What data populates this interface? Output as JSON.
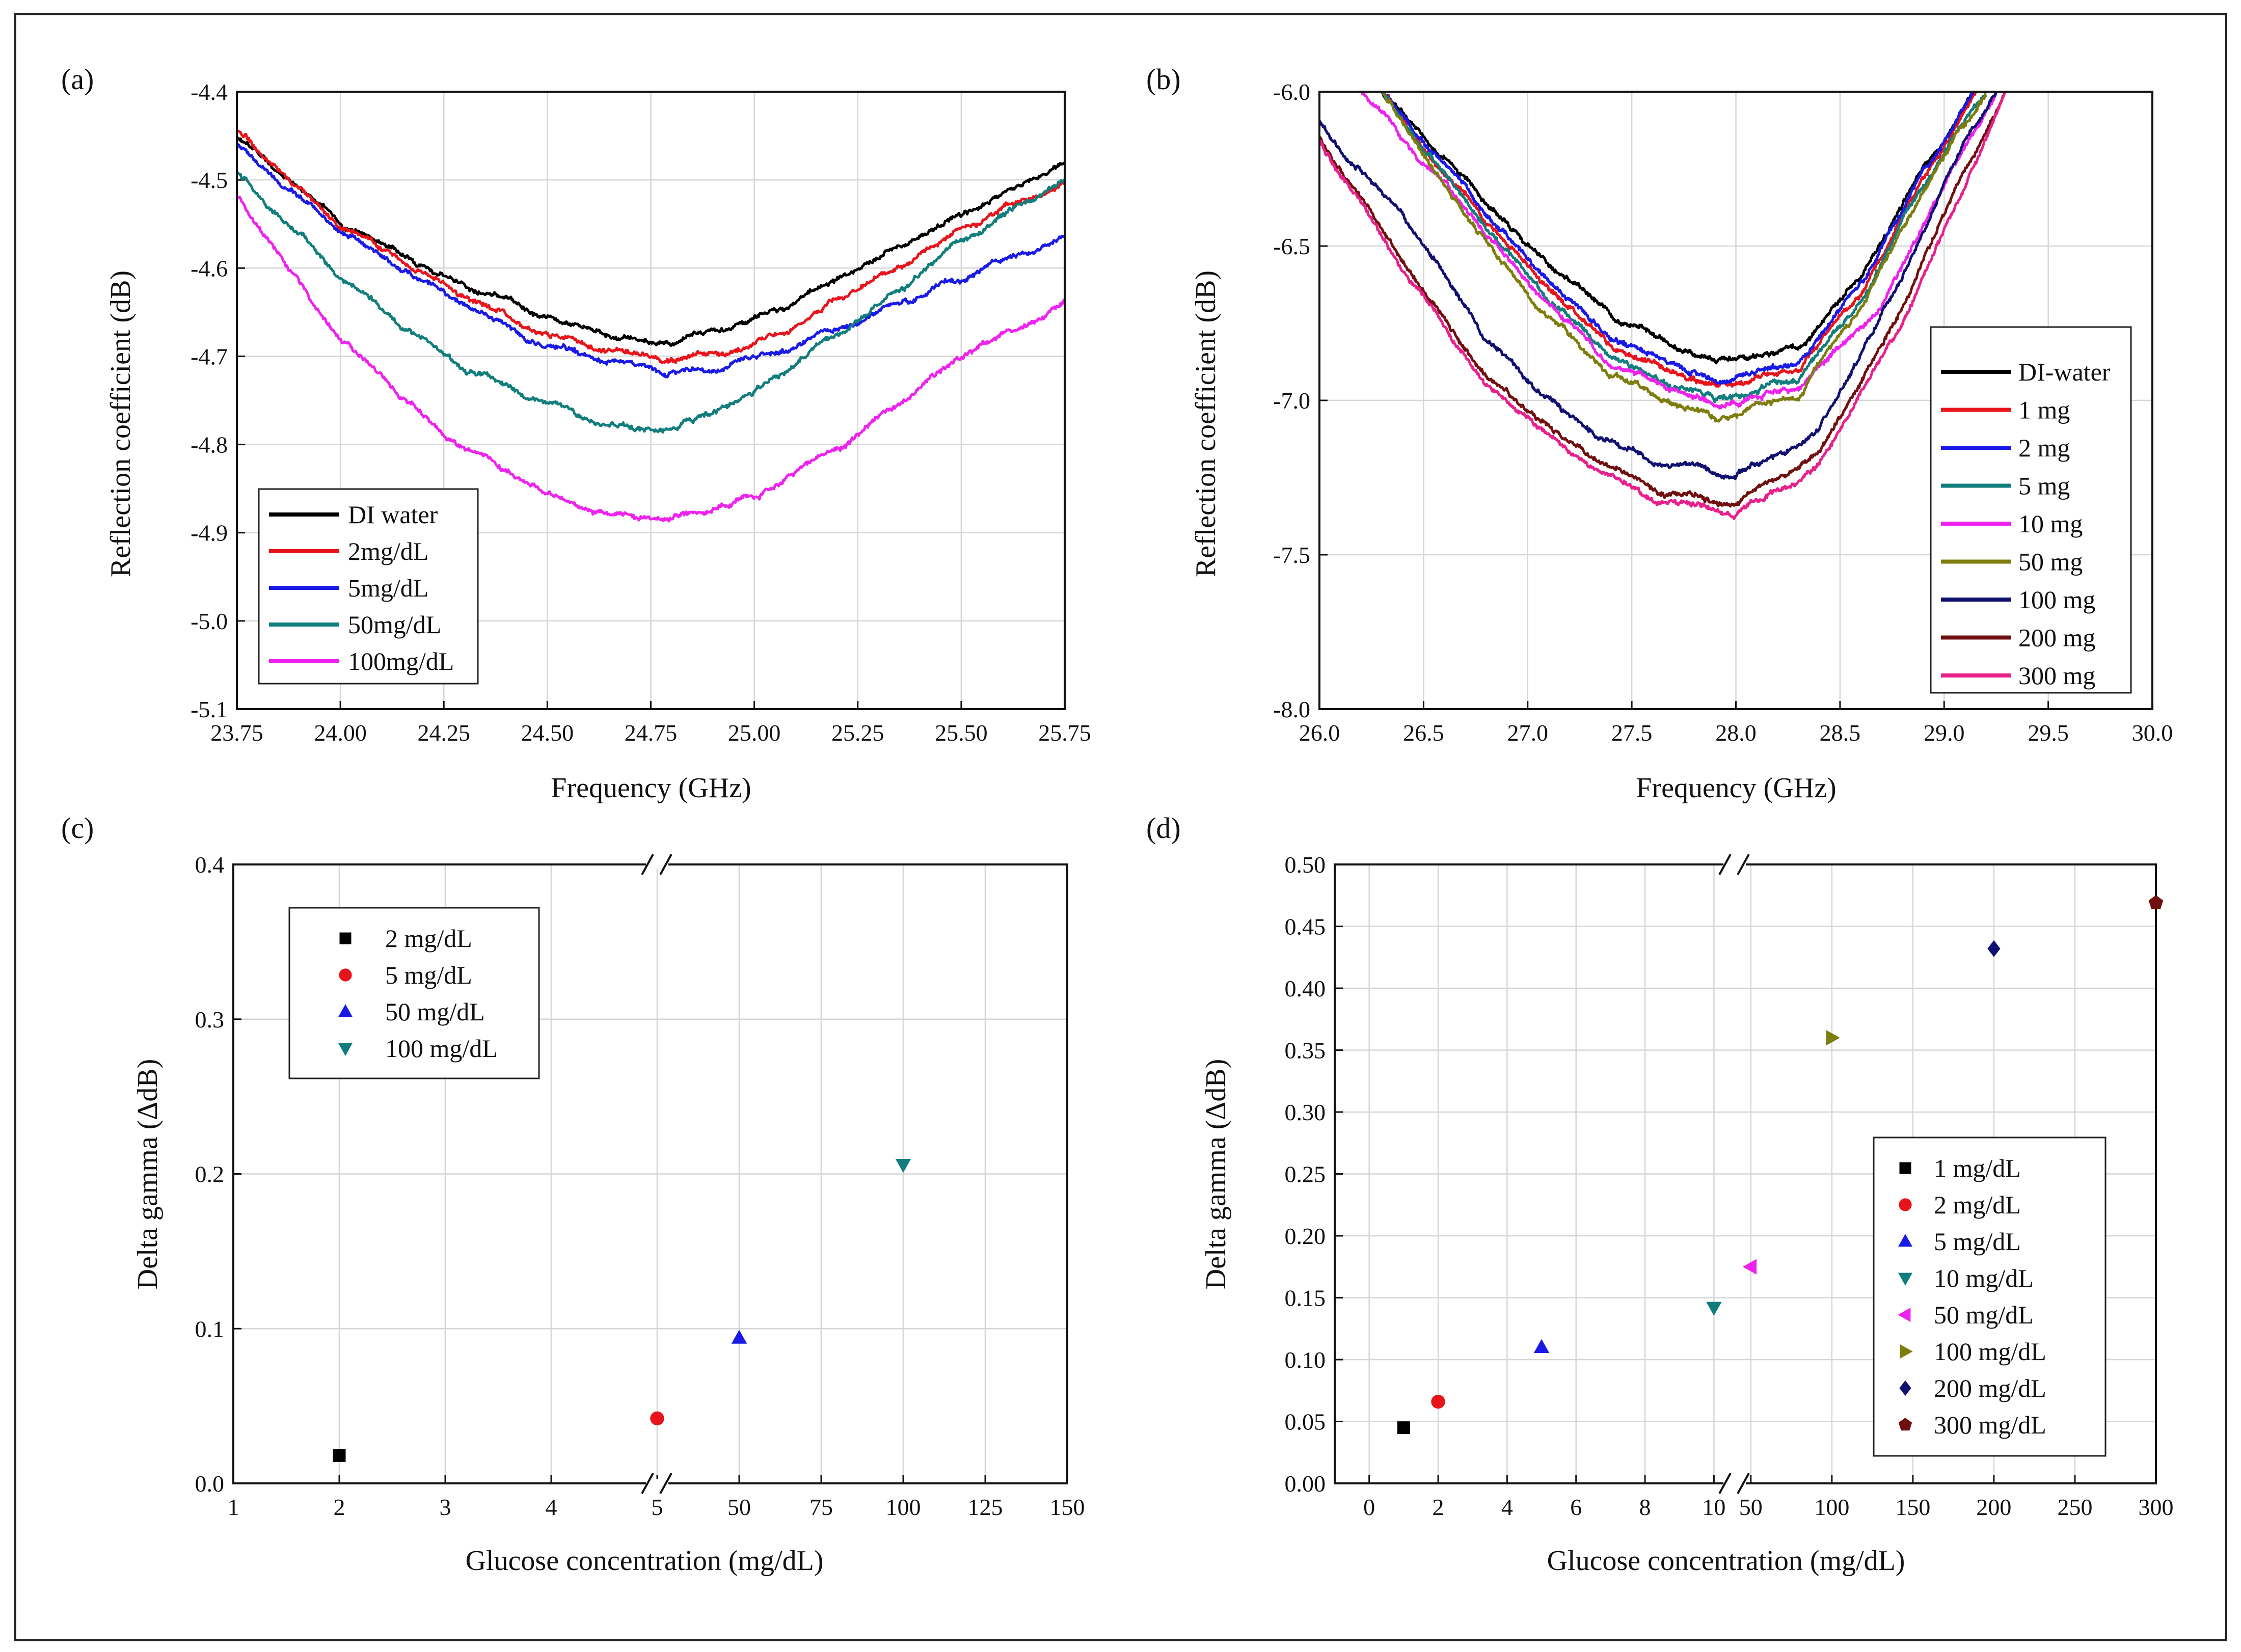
{
  "figure_title": "",
  "chart_data": [
    {
      "id": "a",
      "type": "line",
      "panel_label": "(a)",
      "title": "",
      "xlabel": "Frequency (GHz)",
      "ylabel": "Reflection coefficient (dB)",
      "xlim": [
        23.75,
        25.75
      ],
      "ylim": [
        -5.1,
        -4.4
      ],
      "x_ticks": [
        23.75,
        24.0,
        24.25,
        24.5,
        24.75,
        25.0,
        25.25,
        25.5,
        25.75
      ],
      "x_tick_labels": [
        "23.75",
        "24.00",
        "24.25",
        "24.50",
        "24.75",
        "25.00",
        "25.25",
        "25.50",
        "25.75"
      ],
      "y_ticks": [
        -5.1,
        -5.0,
        -4.9,
        -4.8,
        -4.7,
        -4.6,
        -4.5,
        -4.4
      ],
      "y_tick_labels": [
        "-5.1",
        "-5.0",
        "-4.9",
        "-4.8",
        "-4.7",
        "-4.6",
        "-4.5",
        "-4.4"
      ],
      "grid": true,
      "legend_position": "bottom-left",
      "series": [
        {
          "name": "DI water",
          "color": "#000000",
          "x": [
            23.75,
            24.0,
            24.25,
            24.5,
            24.65,
            24.8,
            25.0,
            25.25,
            25.5,
            25.75
          ],
          "values": [
            -4.45,
            -4.55,
            -4.61,
            -4.655,
            -4.675,
            -4.685,
            -4.66,
            -4.6,
            -4.54,
            -4.48
          ]
        },
        {
          "name": "2mg/dL",
          "color": "#e8141c",
          "x": [
            23.75,
            24.0,
            24.25,
            24.5,
            24.65,
            24.8,
            25.0,
            25.25,
            25.5,
            25.75
          ],
          "values": [
            -4.445,
            -4.55,
            -4.62,
            -4.675,
            -4.69,
            -4.705,
            -4.69,
            -4.625,
            -4.555,
            -4.5
          ]
        },
        {
          "name": "5mg/dL",
          "color": "#1a1ae6",
          "x": [
            23.75,
            24.0,
            24.25,
            24.5,
            24.65,
            24.8,
            25.0,
            25.25,
            25.5,
            25.75
          ],
          "values": [
            -4.46,
            -4.56,
            -4.63,
            -4.69,
            -4.705,
            -4.72,
            -4.705,
            -4.66,
            -4.61,
            -4.565
          ]
        },
        {
          "name": "50mg/dL",
          "color": "#127d7d",
          "x": [
            23.75,
            24.0,
            24.25,
            24.5,
            24.65,
            24.8,
            25.0,
            25.25,
            25.5,
            25.75
          ],
          "values": [
            -4.49,
            -4.61,
            -4.7,
            -4.755,
            -4.775,
            -4.785,
            -4.74,
            -4.66,
            -4.57,
            -4.5
          ]
        },
        {
          "name": "100mg/dL",
          "color": "#ee22ee",
          "x": [
            23.75,
            24.0,
            24.25,
            24.5,
            24.65,
            24.8,
            25.0,
            25.25,
            25.5,
            25.75
          ],
          "values": [
            -4.52,
            -4.68,
            -4.79,
            -4.855,
            -4.88,
            -4.885,
            -4.86,
            -4.79,
            -4.7,
            -4.64
          ]
        }
      ]
    },
    {
      "id": "b",
      "type": "line",
      "panel_label": "(b)",
      "title": "",
      "xlabel": "Frequency (GHz)",
      "ylabel": "Reflection coefficient (dB)",
      "xlim": [
        26.0,
        30.0
      ],
      "ylim": [
        -8.0,
        -6.0
      ],
      "x_ticks": [
        26.0,
        26.5,
        27.0,
        27.5,
        28.0,
        28.5,
        29.0,
        29.5,
        30.0
      ],
      "x_tick_labels": [
        "26.0",
        "26.5",
        "27.0",
        "27.5",
        "28.0",
        "28.5",
        "29.0",
        "29.5",
        "30.0"
      ],
      "y_ticks": [
        -8.0,
        -7.5,
        -7.0,
        -6.5,
        -6.0
      ],
      "y_tick_labels": [
        "-8.0",
        "-7.5",
        "-7.0",
        "-6.5",
        "-6.0"
      ],
      "grid": true,
      "legend_position": "bottom-right",
      "series": [
        {
          "name": "DI-water",
          "color": "#000000",
          "x": [
            26.3,
            26.6,
            27.0,
            27.4,
            27.9,
            28.3,
            28.6,
            28.9,
            29.15
          ],
          "values": [
            -6.0,
            -6.22,
            -6.5,
            -6.72,
            -6.88,
            -6.83,
            -6.6,
            -6.25,
            -6.0
          ]
        },
        {
          "name": "1 mg",
          "color": "#e8141c",
          "x": [
            26.3,
            26.6,
            27.0,
            27.4,
            27.9,
            28.3,
            28.6,
            28.9,
            29.15
          ],
          "values": [
            -6.0,
            -6.26,
            -6.57,
            -6.82,
            -6.96,
            -6.9,
            -6.65,
            -6.28,
            -6.0
          ]
        },
        {
          "name": "2 mg",
          "color": "#1a1ae6",
          "x": [
            26.3,
            26.6,
            27.0,
            27.4,
            27.9,
            28.3,
            28.6,
            28.9,
            29.15
          ],
          "values": [
            -6.0,
            -6.24,
            -6.55,
            -6.8,
            -6.94,
            -6.88,
            -6.62,
            -6.26,
            -6.0
          ]
        },
        {
          "name": "5 mg",
          "color": "#127d7d",
          "x": [
            26.3,
            26.6,
            27.0,
            27.4,
            27.9,
            28.3,
            28.6,
            28.9,
            29.2
          ],
          "values": [
            -6.0,
            -6.27,
            -6.6,
            -6.86,
            -7.0,
            -6.93,
            -6.68,
            -6.3,
            -6.0
          ]
        },
        {
          "name": "10 mg",
          "color": "#ee22ee",
          "x": [
            26.2,
            26.6,
            27.0,
            27.4,
            27.9,
            28.3,
            28.7,
            29.0,
            29.25
          ],
          "values": [
            -6.0,
            -6.3,
            -6.62,
            -6.88,
            -7.02,
            -6.96,
            -6.7,
            -6.3,
            -6.0
          ]
        },
        {
          "name": "50 mg",
          "color": "#7d7d0e",
          "x": [
            26.3,
            26.6,
            27.0,
            27.4,
            27.9,
            28.3,
            28.6,
            28.9,
            29.2
          ],
          "values": [
            -6.0,
            -6.3,
            -6.66,
            -6.92,
            -7.06,
            -6.98,
            -6.7,
            -6.32,
            -6.0
          ]
        },
        {
          "name": "100 mg",
          "color": "#101070",
          "x": [
            26.0,
            26.4,
            26.8,
            27.2,
            27.6,
            28.0,
            28.4,
            28.8,
            29.1,
            29.25
          ],
          "values": [
            -6.1,
            -6.4,
            -6.8,
            -7.06,
            -7.2,
            -7.24,
            -7.1,
            -6.6,
            -6.15,
            -6.0
          ]
        },
        {
          "name": "200 mg",
          "color": "#700f0f",
          "x": [
            26.0,
            26.4,
            26.8,
            27.2,
            27.6,
            28.0,
            28.4,
            28.8,
            29.1,
            29.3
          ],
          "values": [
            -6.15,
            -6.55,
            -6.92,
            -7.14,
            -7.29,
            -7.33,
            -7.17,
            -6.7,
            -6.25,
            -6.0
          ]
        },
        {
          "name": "300 mg",
          "color": "#e8208c",
          "x": [
            26.0,
            26.4,
            26.8,
            27.2,
            27.6,
            28.0,
            28.4,
            28.8,
            29.1,
            29.3
          ],
          "values": [
            -6.16,
            -6.57,
            -6.95,
            -7.17,
            -7.32,
            -7.37,
            -7.21,
            -6.75,
            -6.3,
            -6.0
          ]
        }
      ]
    },
    {
      "id": "c",
      "type": "scatter",
      "panel_label": "(c)",
      "title": "",
      "xlabel": "Glucose concentration (mg/dL)",
      "ylabel": "Delta gamma (ΔdB)",
      "ylim": [
        0.0,
        0.4
      ],
      "x_axis_break": true,
      "x_segments": [
        {
          "range": [
            1,
            5
          ],
          "ticks": [
            1,
            2,
            3,
            4,
            5
          ],
          "tick_labels": [
            "1",
            "2",
            "3",
            "4",
            "5"
          ]
        },
        {
          "range": [
            25,
            150
          ],
          "ticks": [
            50,
            75,
            100,
            125,
            150
          ],
          "tick_labels": [
            "50",
            "75",
            "100",
            "125",
            "150"
          ]
        }
      ],
      "y_ticks": [
        0.0,
        0.1,
        0.2,
        0.3,
        0.4
      ],
      "y_tick_labels": [
        "0.0",
        "0.1",
        "0.2",
        "0.3",
        "0.4"
      ],
      "grid": true,
      "legend_position": "top-left",
      "series": [
        {
          "name": "2 mg/dL",
          "color": "#000000",
          "marker": "square",
          "x": [
            2
          ],
          "values": [
            0.018
          ]
        },
        {
          "name": "5 mg/dL",
          "color": "#e8141c",
          "marker": "circle",
          "x": [
            5
          ],
          "values": [
            0.042
          ]
        },
        {
          "name": "50 mg/dL",
          "color": "#1a1ae6",
          "marker": "triangle-up",
          "x": [
            50
          ],
          "values": [
            0.094
          ]
        },
        {
          "name": "100 mg/dL",
          "color": "#127d7d",
          "marker": "triangle-down",
          "x": [
            100
          ],
          "values": [
            0.206
          ]
        }
      ]
    },
    {
      "id": "d",
      "type": "scatter",
      "panel_label": "(d)",
      "title": "",
      "xlabel": "Glucose concentration (mg/dL)",
      "ylabel": "Delta gamma (ΔdB)",
      "ylim": [
        0.0,
        0.5
      ],
      "x_axis_break": true,
      "x_segments": [
        {
          "range": [
            -1,
            10.6
          ],
          "ticks": [
            0,
            2,
            4,
            6,
            8,
            10
          ],
          "tick_labels": [
            "0",
            "2",
            "4",
            "6",
            "8",
            "10"
          ]
        },
        {
          "range": [
            40,
            300
          ],
          "ticks": [
            50,
            100,
            150,
            200,
            250,
            300
          ],
          "tick_labels": [
            "50",
            "100",
            "150",
            "200",
            "250",
            "300"
          ]
        }
      ],
      "y_ticks": [
        0.0,
        0.05,
        0.1,
        0.15,
        0.2,
        0.25,
        0.3,
        0.35,
        0.4,
        0.45,
        0.5
      ],
      "y_tick_labels": [
        "0.00",
        "0.05",
        "0.10",
        "0.15",
        "0.20",
        "0.25",
        "0.30",
        "0.35",
        "0.40",
        "0.45",
        "0.50"
      ],
      "grid": true,
      "legend_position": "bottom-right",
      "series": [
        {
          "name": "1 mg/dL",
          "color": "#000000",
          "marker": "square",
          "x": [
            1
          ],
          "values": [
            0.045
          ]
        },
        {
          "name": "2 mg/dL",
          "color": "#e8141c",
          "marker": "circle",
          "x": [
            2
          ],
          "values": [
            0.066
          ]
        },
        {
          "name": "5 mg/dL",
          "color": "#1a1ae6",
          "marker": "triangle-up",
          "x": [
            5
          ],
          "values": [
            0.11
          ]
        },
        {
          "name": "10 mg/dL",
          "color": "#127d7d",
          "marker": "triangle-down",
          "x": [
            10
          ],
          "values": [
            0.142
          ]
        },
        {
          "name": "50 mg/dL",
          "color": "#ee22ee",
          "marker": "triangle-left",
          "x": [
            50
          ],
          "values": [
            0.175
          ]
        },
        {
          "name": "100 mg/dL",
          "color": "#7d7d0e",
          "marker": "triangle-right",
          "x": [
            100
          ],
          "values": [
            0.36
          ]
        },
        {
          "name": "200 mg/dL",
          "color": "#101070",
          "marker": "diamond",
          "x": [
            200
          ],
          "values": [
            0.432
          ]
        },
        {
          "name": "300 mg/dL",
          "color": "#700f0f",
          "marker": "pentagon",
          "x": [
            300
          ],
          "values": [
            0.469
          ]
        }
      ]
    }
  ]
}
